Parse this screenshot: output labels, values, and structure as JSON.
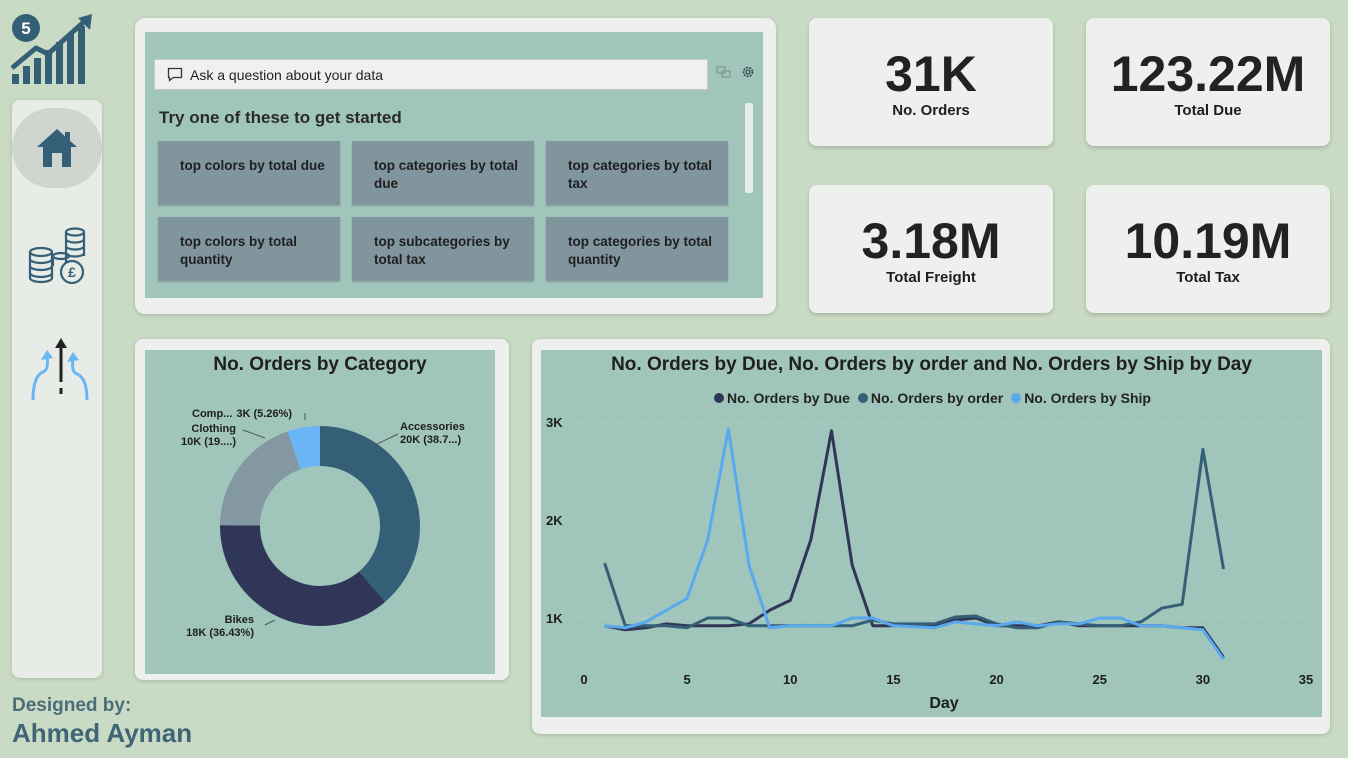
{
  "logo": {
    "badge": "5"
  },
  "nav": {
    "items": [
      {
        "name": "home",
        "active": true
      },
      {
        "name": "finance",
        "active": false
      },
      {
        "name": "shipping",
        "active": false
      }
    ]
  },
  "qa": {
    "placeholder": "Ask a question about your data",
    "heading": "Try one of these to get started",
    "suggestions": [
      "top colors by total due",
      "top categories by total due",
      "top categories by total tax",
      "top colors by total quantity",
      "top subcategories by total tax",
      "top categories by total quantity"
    ]
  },
  "kpis": [
    {
      "value": "31K",
      "label": "No. Orders"
    },
    {
      "value": "123.22M",
      "label": "Total Due"
    },
    {
      "value": "3.18M",
      "label": "Total Freight"
    },
    {
      "value": "10.19M",
      "label": "Total Tax"
    }
  ],
  "colors": {
    "background": "#c9dbc4",
    "panel": "#a0c5bb",
    "accessories": "#345f76",
    "bikes": "#2f3658",
    "clothing": "#8498a3",
    "components": "#6ab5f5",
    "series_due": "#2f3658",
    "series_order": "#345f76",
    "series_ship": "#5aa9ee"
  },
  "chart_data": [
    {
      "type": "pie",
      "title": "No. Orders by Category",
      "slices": [
        {
          "name": "Accessories",
          "value": 20,
          "label": "20K (38.7...)"
        },
        {
          "name": "Bikes",
          "value": 18,
          "label": "18K (36.43%)"
        },
        {
          "name": "Clothing",
          "value": 10,
          "label": "10K (19....)"
        },
        {
          "name": "Comp...",
          "value": 3,
          "label": "3K (5.26%)"
        }
      ],
      "percents": [
        38.7,
        36.43,
        19.61,
        5.26
      ]
    },
    {
      "type": "line",
      "title": "No. Orders by Due, No. Orders by order and No. Orders by Ship by Day",
      "xlabel": "Day",
      "ylabel": "",
      "xlim": [
        0,
        35
      ],
      "ylim": [
        0,
        3000
      ],
      "xticks": [
        "0",
        "5",
        "10",
        "15",
        "20",
        "25",
        "30",
        "35"
      ],
      "yticks": [
        "1K",
        "2K",
        "3K"
      ],
      "yticks_values": [
        1000,
        2000,
        3000
      ],
      "legend_position": "top",
      "x": [
        1,
        2,
        3,
        4,
        5,
        6,
        7,
        8,
        9,
        10,
        11,
        12,
        13,
        14,
        15,
        16,
        17,
        18,
        19,
        20,
        21,
        22,
        23,
        24,
        25,
        26,
        27,
        28,
        29,
        30,
        31
      ],
      "series": [
        {
          "name": "No. Orders by Due",
          "values": [
            920,
            880,
            900,
            940,
            920,
            920,
            920,
            940,
            1080,
            1180,
            1800,
            2910,
            1540,
            920,
            920,
            920,
            920,
            980,
            1000,
            920,
            920,
            920,
            960,
            920,
            920,
            920,
            920,
            920,
            900,
            900,
            600
          ]
        },
        {
          "name": "No. Orders by order",
          "values": [
            1560,
            920,
            920,
            920,
            900,
            1000,
            1000,
            920,
            920,
            920,
            920,
            920,
            920,
            980,
            940,
            940,
            940,
            1010,
            1020,
            940,
            900,
            900,
            960,
            940,
            920,
            920,
            960,
            1100,
            1140,
            2720,
            1500
          ]
        },
        {
          "name": "No. Orders by Ship",
          "values": [
            920,
            900,
            960,
            1080,
            1200,
            1800,
            2930,
            1540,
            900,
            920,
            920,
            920,
            1000,
            1000,
            920,
            910,
            900,
            960,
            940,
            920,
            960,
            920,
            940,
            940,
            1000,
            1000,
            920,
            920,
            900,
            880,
            580
          ]
        }
      ]
    }
  ],
  "credits": {
    "line1": "Designed by:",
    "line2": "Ahmed Ayman"
  }
}
